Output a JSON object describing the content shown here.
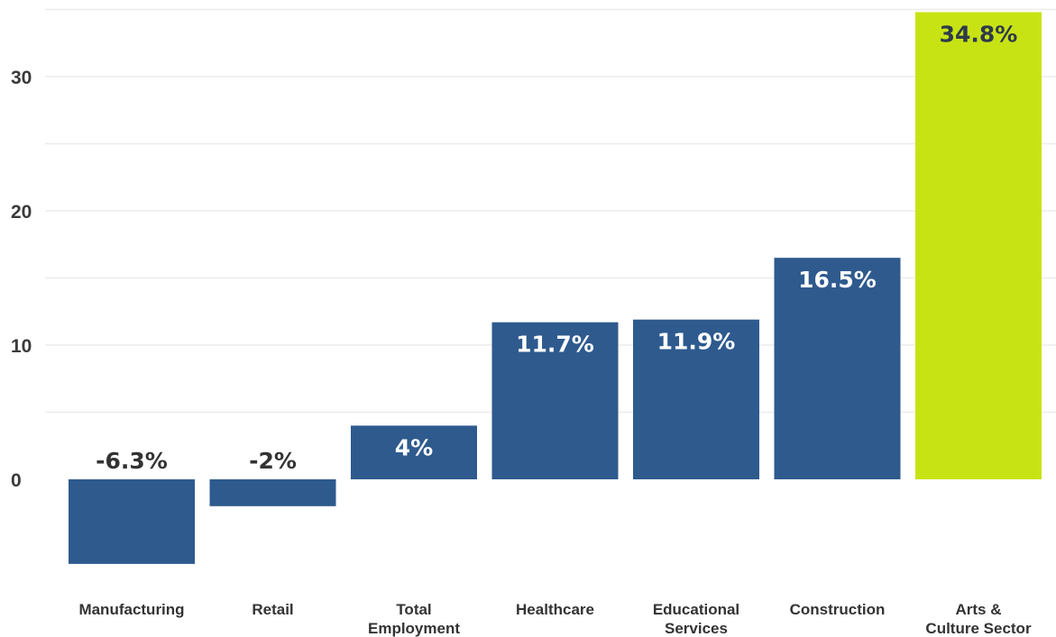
{
  "chart_data": {
    "type": "bar",
    "title": "",
    "xlabel": "",
    "ylabel": "",
    "categories": [
      [
        "Manufacturing"
      ],
      [
        "Retail"
      ],
      [
        "Total",
        "Employment"
      ],
      [
        "Healthcare"
      ],
      [
        "Educational",
        "Services"
      ],
      [
        "Construction"
      ],
      [
        "Arts &",
        "Culture Sector"
      ]
    ],
    "values": [
      -6.3,
      -2,
      4,
      11.7,
      11.9,
      16.5,
      34.8
    ],
    "data_labels": [
      "-6.3%",
      "-2%",
      "4%",
      "11.7%",
      "11.9%",
      "16.5%",
      "34.8%"
    ],
    "yticks": [
      0,
      10,
      20,
      30
    ],
    "ylim": [
      -8,
      35
    ],
    "grid": true,
    "colors": {
      "default_bar": "#2e5a8e",
      "highlight_bar": "#c8e314",
      "label_on_bar": "#ffffff",
      "label_above_bar": "#333333",
      "label_on_highlight": "#2e3a4a"
    },
    "highlight_index": 6
  }
}
